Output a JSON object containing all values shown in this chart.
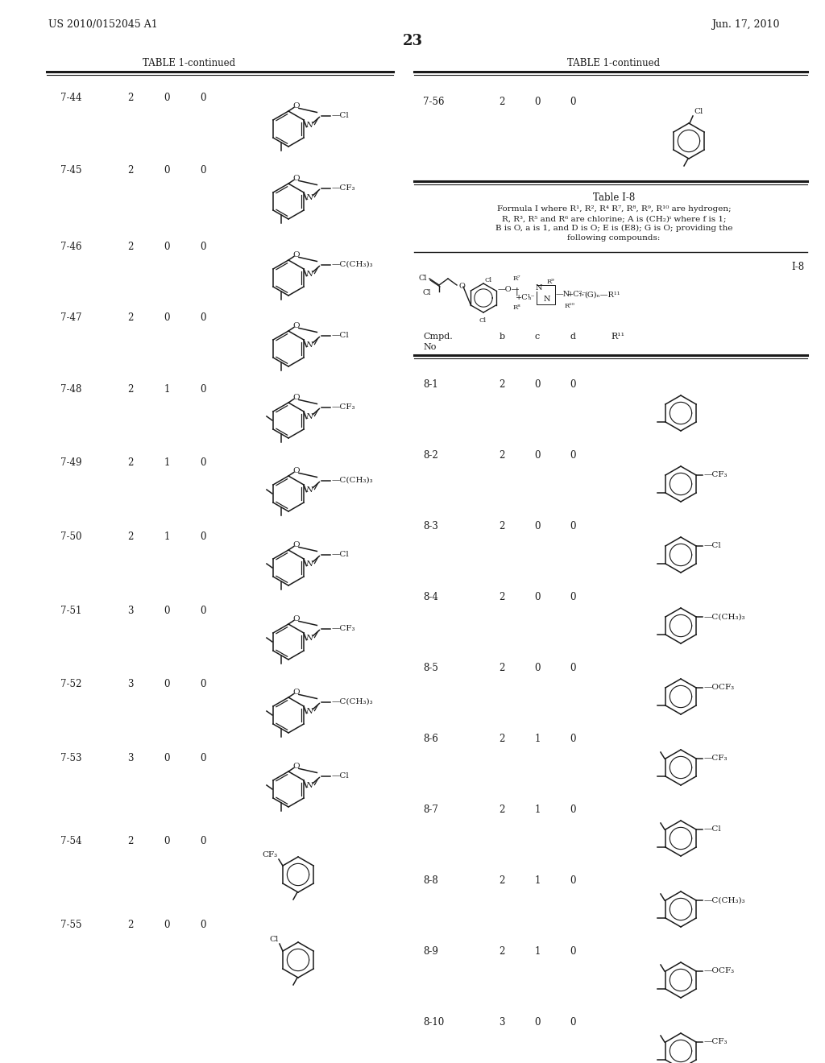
{
  "patent_number": "US 2010/0152045 A1",
  "patent_date": "Jun. 17, 2010",
  "page_number": "23",
  "bg": "#ffffff",
  "tc": "#1a1a1a",
  "left_table_title": "TABLE 1-continued",
  "right_table_title": "TABLE 1-continued",
  "left_entries": [
    {
      "id": "7-44",
      "b": "2",
      "c": "0",
      "d": "0",
      "sub": "—Cl",
      "me": 1
    },
    {
      "id": "7-45",
      "b": "2",
      "c": "0",
      "d": "0",
      "sub": "—CF₃",
      "me": 1
    },
    {
      "id": "7-46",
      "b": "2",
      "c": "0",
      "d": "0",
      "sub": "—C(CH₃)₃",
      "me": 1
    },
    {
      "id": "7-47",
      "b": "2",
      "c": "0",
      "d": "0",
      "sub": "—Cl",
      "me": 1
    },
    {
      "id": "7-48",
      "b": "2",
      "c": "1",
      "d": "0",
      "sub": "—CF₃",
      "me": 2
    },
    {
      "id": "7-49",
      "b": "2",
      "c": "1",
      "d": "0",
      "sub": "—C(CH₃)₃",
      "me": 2
    },
    {
      "id": "7-50",
      "b": "2",
      "c": "1",
      "d": "0",
      "sub": "—Cl",
      "me": 2
    },
    {
      "id": "7-51",
      "b": "3",
      "c": "0",
      "d": "0",
      "sub": "—CF₃",
      "me": 2
    },
    {
      "id": "7-52",
      "b": "3",
      "c": "0",
      "d": "0",
      "sub": "—C(CH₃)₃",
      "me": 2
    },
    {
      "id": "7-53",
      "b": "3",
      "c": "0",
      "d": "0",
      "sub": "—Cl",
      "me": 2
    }
  ],
  "right_top": {
    "id": "7-56",
    "b": "2",
    "c": "0",
    "d": "0"
  },
  "table_i8_title": "Table I-8",
  "table_i8_lines": [
    "Formula I where R¹, R², R⁴ R⁷, R⁸, R⁹, R¹⁰ are hydrogen;",
    "R, R³, R⁵ and R⁶ are chlorine; A is (CH₂)ⁱ where f is 1;",
    "B is O, a is 1, and D is O; E is (E8); G is O; providing the",
    "following compounds:"
  ],
  "right_entries": [
    {
      "id": "8-1",
      "b": "2",
      "c": "0",
      "d": "0",
      "sub": "",
      "xylyl": false
    },
    {
      "id": "8-2",
      "b": "2",
      "c": "0",
      "d": "0",
      "sub": "CF₃",
      "xylyl": false
    },
    {
      "id": "8-3",
      "b": "2",
      "c": "0",
      "d": "0",
      "sub": "Cl",
      "xylyl": false
    },
    {
      "id": "8-4",
      "b": "2",
      "c": "0",
      "d": "0",
      "sub": "C(CH₃)₃",
      "xylyl": false
    },
    {
      "id": "8-5",
      "b": "2",
      "c": "0",
      "d": "0",
      "sub": "OCF₃",
      "xylyl": false
    },
    {
      "id": "8-6",
      "b": "2",
      "c": "1",
      "d": "0",
      "sub": "CF₃",
      "xylyl": true
    },
    {
      "id": "8-7",
      "b": "2",
      "c": "1",
      "d": "0",
      "sub": "Cl",
      "xylyl": true
    },
    {
      "id": "8-8",
      "b": "2",
      "c": "1",
      "d": "0",
      "sub": "C(CH₃)₃",
      "xylyl": true
    },
    {
      "id": "8-9",
      "b": "2",
      "c": "1",
      "d": "0",
      "sub": "OCF₃",
      "xylyl": true
    },
    {
      "id": "8-10",
      "b": "3",
      "c": "0",
      "d": "0",
      "sub": "CF₃",
      "xylyl": true
    }
  ]
}
